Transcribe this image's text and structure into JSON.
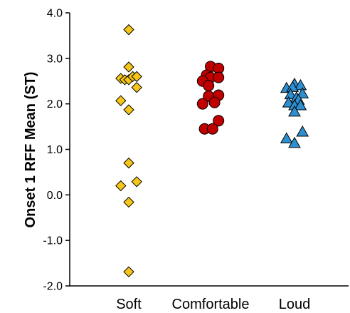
{
  "chart_data": {
    "type": "scatter",
    "title": "",
    "xlabel": "",
    "ylabel": "Onset 1 RFF Mean (ST)",
    "ylim": [
      -2.0,
      4.0
    ],
    "yticks": [
      "4.0",
      "3.0",
      "2.0",
      "1.0",
      "0.0",
      "-1.0",
      "-2.0"
    ],
    "yticks_values": [
      4.0,
      3.0,
      2.0,
      1.0,
      0.0,
      -1.0,
      -2.0
    ],
    "categories": [
      "Soft",
      "Comfortable",
      "Loud"
    ],
    "grid": false,
    "legend": "none",
    "series": [
      {
        "category": "Soft",
        "marker": "diamond",
        "color": "#F5C518",
        "points": [
          {
            "x": 0.0,
            "y": 3.63
          },
          {
            "x": 0.0,
            "y": 2.81
          },
          {
            "x": -0.28,
            "y": 2.56
          },
          {
            "x": -0.14,
            "y": 2.53
          },
          {
            "x": 0.0,
            "y": 2.53
          },
          {
            "x": 0.14,
            "y": 2.6
          },
          {
            "x": 0.28,
            "y": 2.6
          },
          {
            "x": 0.28,
            "y": 2.36
          },
          {
            "x": -0.28,
            "y": 2.07
          },
          {
            "x": 0.0,
            "y": 1.87
          },
          {
            "x": 0.0,
            "y": 0.7
          },
          {
            "x": -0.28,
            "y": 0.2
          },
          {
            "x": 0.28,
            "y": 0.29
          },
          {
            "x": 0.0,
            "y": -0.16
          },
          {
            "x": 0.0,
            "y": -1.69
          }
        ]
      },
      {
        "category": "Comfortable",
        "marker": "circle",
        "color": "#C00000",
        "points": [
          {
            "x": 0.0,
            "y": 2.82
          },
          {
            "x": 0.28,
            "y": 2.78
          },
          {
            "x": -0.14,
            "y": 2.63
          },
          {
            "x": 0.0,
            "y": 2.58
          },
          {
            "x": 0.28,
            "y": 2.58
          },
          {
            "x": -0.28,
            "y": 2.5
          },
          {
            "x": -0.07,
            "y": 2.4
          },
          {
            "x": -0.07,
            "y": 2.17
          },
          {
            "x": 0.28,
            "y": 2.19
          },
          {
            "x": -0.28,
            "y": 2.0
          },
          {
            "x": 0.14,
            "y": 2.03
          },
          {
            "x": 0.28,
            "y": 1.63
          },
          {
            "x": -0.21,
            "y": 1.45
          },
          {
            "x": 0.07,
            "y": 1.45
          }
        ]
      },
      {
        "category": "Loud",
        "marker": "triangle",
        "color": "#2E8FD0",
        "points": [
          {
            "x": 0.0,
            "y": 2.45
          },
          {
            "x": 0.21,
            "y": 2.42
          },
          {
            "x": -0.28,
            "y": 2.36
          },
          {
            "x": -0.07,
            "y": 2.38
          },
          {
            "x": 0.28,
            "y": 2.24
          },
          {
            "x": -0.14,
            "y": 2.22
          },
          {
            "x": 0.07,
            "y": 2.15
          },
          {
            "x": -0.21,
            "y": 2.04
          },
          {
            "x": 0.14,
            "y": 2.1
          },
          {
            "x": 0.0,
            "y": 1.98
          },
          {
            "x": 0.21,
            "y": 1.98
          },
          {
            "x": 0.0,
            "y": 1.84
          },
          {
            "x": 0.28,
            "y": 1.4
          },
          {
            "x": -0.28,
            "y": 1.25
          },
          {
            "x": 0.0,
            "y": 1.15
          }
        ]
      }
    ]
  }
}
